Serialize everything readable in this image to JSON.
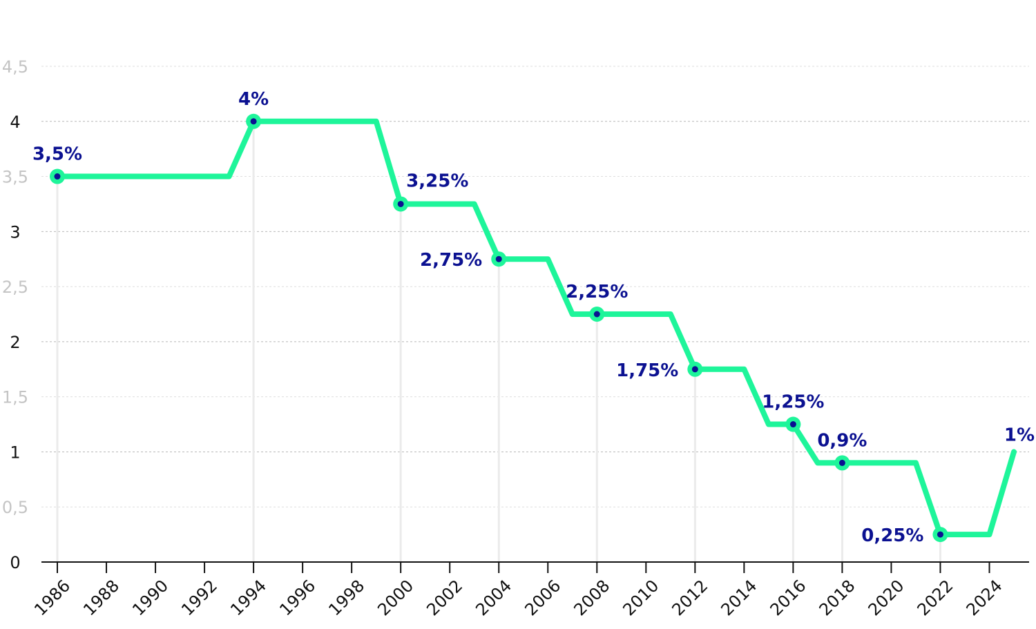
{
  "chart_data": {
    "type": "line",
    "title": "",
    "xlabel": "",
    "ylabel": "",
    "xlim": [
      1985.6,
      2025.5
    ],
    "ylim": [
      0,
      4.5
    ],
    "y_ticks": [
      {
        "value": 0,
        "label": "0",
        "major": true
      },
      {
        "value": 0.5,
        "label": "0,5",
        "major": false
      },
      {
        "value": 1,
        "label": "1",
        "major": true
      },
      {
        "value": 1.5,
        "label": "1,5",
        "major": false
      },
      {
        "value": 2,
        "label": "2",
        "major": true
      },
      {
        "value": 2.5,
        "label": "2,5",
        "major": false
      },
      {
        "value": 3,
        "label": "3",
        "major": true
      },
      {
        "value": 3.5,
        "label": "3,5",
        "major": false
      },
      {
        "value": 4,
        "label": "4",
        "major": true
      },
      {
        "value": 4.5,
        "label": "4,5",
        "major": false
      }
    ],
    "x_ticks": [
      "1986",
      "1988",
      "1990",
      "1992",
      "1994",
      "1996",
      "1998",
      "2000",
      "2002",
      "2004",
      "2006",
      "2008",
      "2010",
      "2012",
      "2014",
      "2016",
      "2018",
      "2020",
      "2022",
      "2024"
    ],
    "grid": true,
    "line_color": "#1ef59a",
    "label_color": "#0b1191",
    "series": [
      {
        "points": [
          {
            "x": 1986,
            "y": 3.5
          },
          {
            "x": 1993,
            "y": 3.5
          },
          {
            "x": 1994,
            "y": 4
          },
          {
            "x": 1999,
            "y": 4
          },
          {
            "x": 2000,
            "y": 3.25
          },
          {
            "x": 2003,
            "y": 3.25
          },
          {
            "x": 2004,
            "y": 2.75
          },
          {
            "x": 2006,
            "y": 2.75
          },
          {
            "x": 2007,
            "y": 2.25
          },
          {
            "x": 2011,
            "y": 2.25
          },
          {
            "x": 2012,
            "y": 1.75
          },
          {
            "x": 2014,
            "y": 1.75
          },
          {
            "x": 2015,
            "y": 1.25
          },
          {
            "x": 2016,
            "y": 1.25
          },
          {
            "x": 2017,
            "y": 0.9
          },
          {
            "x": 2021,
            "y": 0.9
          },
          {
            "x": 2022,
            "y": 0.25
          },
          {
            "x": 2024,
            "y": 0.25
          },
          {
            "x": 2025,
            "y": 1
          }
        ]
      }
    ],
    "annotations": [
      {
        "x": 1986,
        "y": 3.5,
        "label": "3,5%",
        "pos": "above",
        "marker": true
      },
      {
        "x": 1994,
        "y": 4,
        "label": "4%",
        "pos": "above",
        "marker": true
      },
      {
        "x": 2000,
        "y": 3.25,
        "label": "3,25%",
        "pos": "above-right",
        "marker": true
      },
      {
        "x": 2004,
        "y": 2.75,
        "label": "2,75%",
        "pos": "left",
        "marker": true
      },
      {
        "x": 2008,
        "y": 2.25,
        "label": "2,25%",
        "pos": "above",
        "marker": true
      },
      {
        "x": 2012,
        "y": 1.75,
        "label": "1,75%",
        "pos": "left",
        "marker": true
      },
      {
        "x": 2016,
        "y": 1.25,
        "label": "1,25%",
        "pos": "above",
        "marker": true
      },
      {
        "x": 2018,
        "y": 0.9,
        "label": "0,9%",
        "pos": "above",
        "marker": true
      },
      {
        "x": 2022,
        "y": 0.25,
        "label": "0,25%",
        "pos": "left",
        "marker": true
      },
      {
        "x": 2025,
        "y": 1,
        "label": "1%",
        "pos": "above",
        "marker": false
      }
    ]
  }
}
